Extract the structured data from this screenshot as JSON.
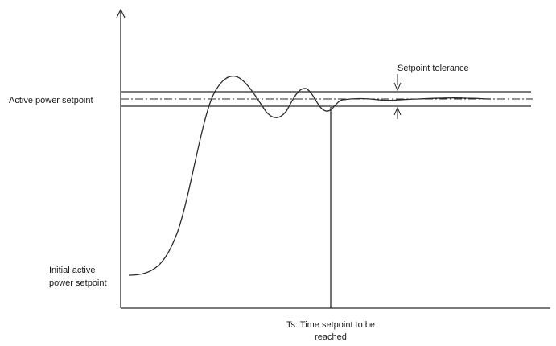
{
  "labels": {
    "active_power_setpoint": "Active power setpoint",
    "initial_line1": "Initial active",
    "initial_line2": "power setpoint",
    "setpoint_tolerance": "Setpoint tolerance",
    "ts_line1": "Ts: Time setpoint to be",
    "ts_line2": "reached"
  },
  "colors": {
    "line": "#2a2a2a",
    "background": "#ffffff"
  }
}
